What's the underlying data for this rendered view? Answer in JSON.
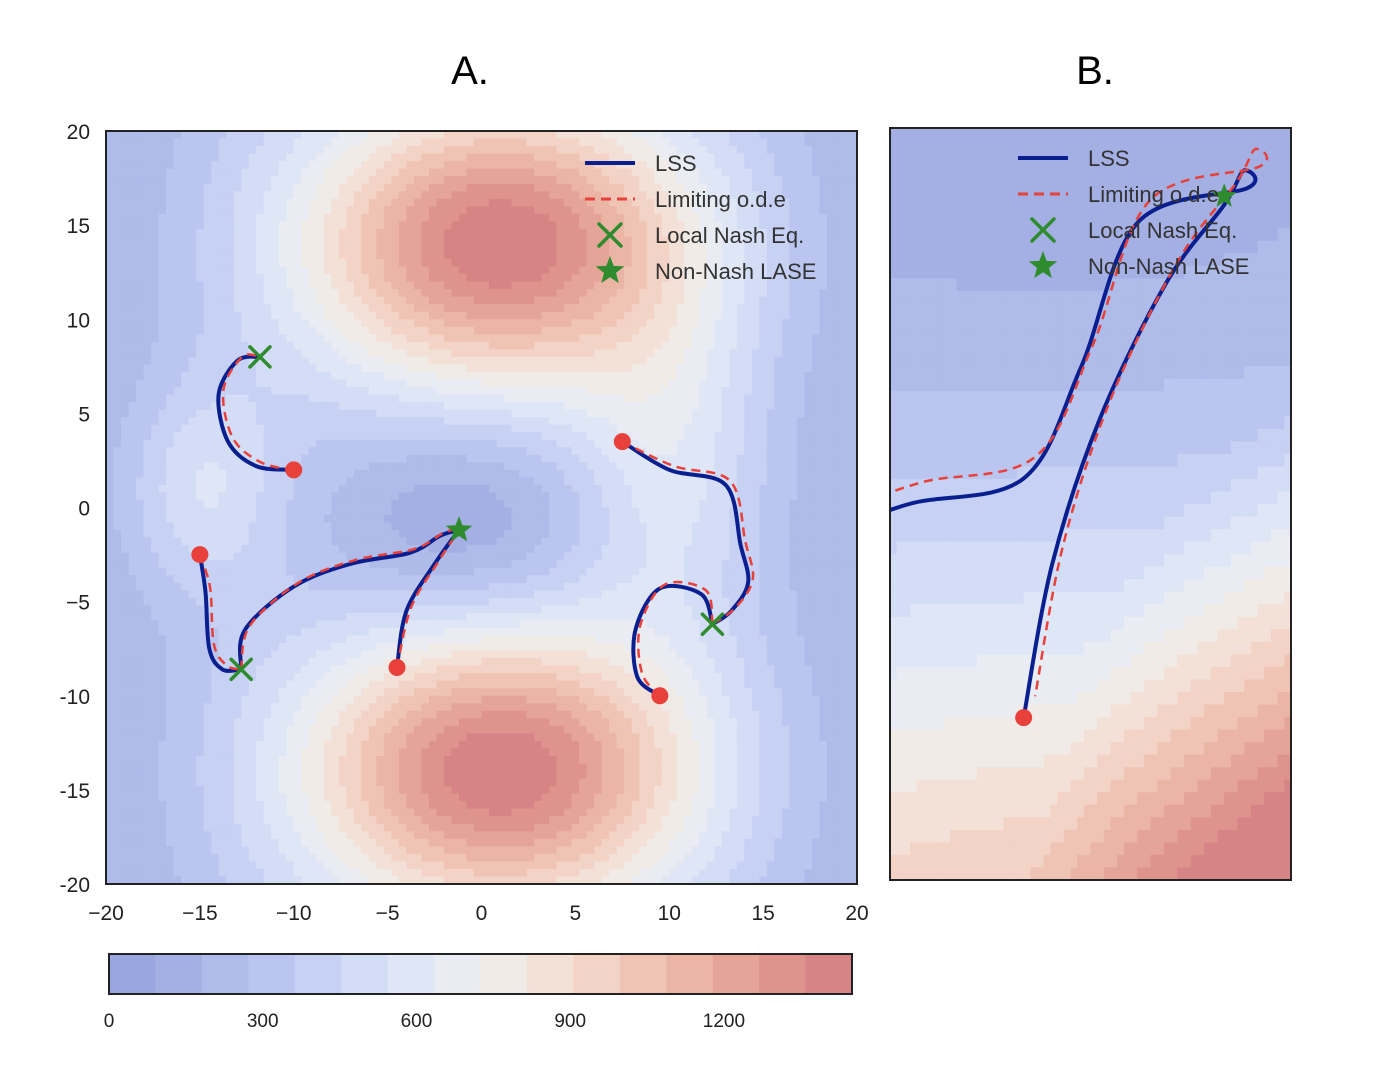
{
  "chart_data": [
    {
      "panel": "A.",
      "type": "contour",
      "title": "A.",
      "xlabel": "",
      "ylabel": "",
      "xlim": [
        -20,
        20
      ],
      "ylim": [
        -20,
        20
      ],
      "xticks": [
        "−20",
        "−15",
        "−10",
        "−5",
        "0",
        "5",
        "10",
        "15",
        "20"
      ],
      "yticks": [
        "20",
        "15",
        "10",
        "5",
        "0",
        "−5",
        "-10",
        "-15",
        "-20"
      ],
      "contour_peaks": [
        {
          "x": 1,
          "y": 14,
          "value": 1450
        },
        {
          "x": 1,
          "y": -14,
          "value": 1450
        }
      ],
      "contour_valleys": [
        {
          "x": -1,
          "y": -1,
          "value": 100
        },
        {
          "x": -15,
          "y": 1,
          "value": 650
        }
      ],
      "legend": [
        {
          "label": "LSS",
          "color": "#0a1f8f",
          "style": "solid"
        },
        {
          "label": "Limiting o.d.e",
          "color": "#e8403a",
          "style": "dashed"
        },
        {
          "label": "Local Nash Eq.",
          "color": "#2e8b2e",
          "marker": "x"
        },
        {
          "label": "Non-Nash LASE",
          "color": "#2e8b2e",
          "marker": "star"
        }
      ],
      "legend_position": "top-right",
      "trajectories": [
        {
          "start": [
            -10,
            2
          ],
          "path": [
            [
              -10,
              2
            ],
            [
              -12,
              2.2
            ],
            [
              -13.5,
              3.5
            ],
            [
              -14,
              6
            ],
            [
              -13,
              7.8
            ],
            [
              -11.8,
              8
            ]
          ]
        },
        {
          "start": [
            -15,
            -2.5
          ],
          "path": [
            [
              -15,
              -2.5
            ],
            [
              -14.7,
              -4.5
            ],
            [
              -14.5,
              -7.5
            ],
            [
              -13.8,
              -8.6
            ],
            [
              -12.8,
              -8.6
            ]
          ]
        },
        {
          "start": [
            -12.8,
            -8.6
          ],
          "path": [
            [
              -12.8,
              -8.6
            ],
            [
              -12.6,
              -6.5
            ],
            [
              -10,
              -4.2
            ],
            [
              -7,
              -3
            ],
            [
              -3.8,
              -2.4
            ],
            [
              -2.2,
              -1.5
            ],
            [
              -1.2,
              -1.2
            ]
          ]
        },
        {
          "start": [
            -4.5,
            -8.5
          ],
          "path": [
            [
              -4.5,
              -8.5
            ],
            [
              -4,
              -5.5
            ],
            [
              -2.5,
              -3
            ],
            [
              -1.2,
              -1.2
            ]
          ]
        },
        {
          "start": [
            7.5,
            3.5
          ],
          "path": [
            [
              7.5,
              3.5
            ],
            [
              10,
              2
            ],
            [
              13,
              1.2
            ],
            [
              13.8,
              -2
            ],
            [
              14.2,
              -4
            ],
            [
              13.3,
              -5.5
            ],
            [
              12.3,
              -6.2
            ]
          ]
        },
        {
          "start": [
            9.5,
            -10
          ],
          "path": [
            [
              9.5,
              -10
            ],
            [
              8.3,
              -9
            ],
            [
              8.2,
              -6.5
            ],
            [
              9.5,
              -4.3
            ],
            [
              11.7,
              -4.6
            ],
            [
              12.3,
              -6.2
            ]
          ]
        }
      ],
      "local_nash_eq": [
        [
          -11.8,
          8
        ],
        [
          -12.8,
          -8.6
        ],
        [
          12.3,
          -6.2
        ]
      ],
      "non_nash_lase": [
        [
          -1.2,
          -1.2
        ]
      ],
      "colorbar": {
        "ticks": [
          "0",
          "300",
          "600",
          "900",
          "1200"
        ],
        "range": [
          0,
          1450
        ],
        "levels": 18
      }
    },
    {
      "panel": "B.",
      "type": "contour",
      "title": "B.",
      "xlabel": "",
      "ylabel": "",
      "legend": [
        {
          "label": "LSS",
          "color": "#0a1f8f",
          "style": "solid"
        },
        {
          "label": "Limiting o.d.e",
          "color": "#e8403a",
          "style": "dashed"
        },
        {
          "label": "Local Nash Eq.",
          "color": "#2e8b2e",
          "marker": "x"
        },
        {
          "label": "Non-Nash LASE",
          "color": "#2e8b2e",
          "marker": "star"
        }
      ],
      "legend_position": "top-right"
    }
  ],
  "colors": {
    "lss": "#0a1f8f",
    "ode": "#e8403a",
    "marker_green": "#2e8b2e",
    "start_red": "#e8403a",
    "cmap": [
      "#9aa6df",
      "#a4b0e4",
      "#afbbe9",
      "#bac6ef",
      "#c6d1f3",
      "#d3ddf6",
      "#dfe6f6",
      "#e9ecf2",
      "#f0ebe6",
      "#f3e1d7",
      "#f2d3c6",
      "#efc4b5",
      "#ebb5a6",
      "#e5a498",
      "#de948c",
      "#d68485"
    ]
  }
}
